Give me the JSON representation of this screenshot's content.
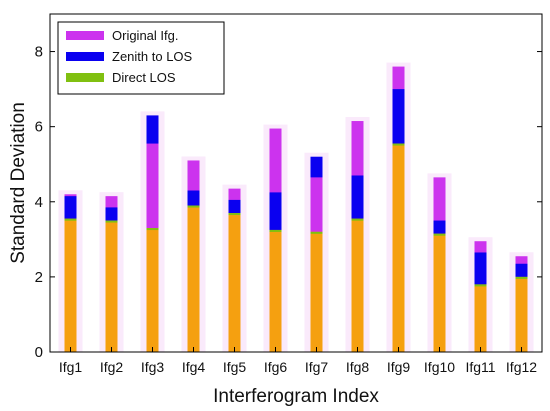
{
  "chart_data": {
    "type": "bar",
    "xlabel": "Interferogram Index",
    "ylabel": "Standard Deviation",
    "ylim": [
      0,
      9
    ],
    "yticks": [
      0,
      2,
      4,
      6,
      8
    ],
    "grid": false,
    "legend_position": "top-left",
    "categories": [
      "Ifg1",
      "Ifg2",
      "Ifg3",
      "Ifg4",
      "Ifg5",
      "Ifg6",
      "Ifg7",
      "Ifg8",
      "Ifg9",
      "Ifg10",
      "Ifg11",
      "Ifg12"
    ],
    "series": [
      {
        "name": "Original Ifg.",
        "color": "#cc33ee",
        "values": [
          4.2,
          4.15,
          5.55,
          5.1,
          4.35,
          5.95,
          4.65,
          6.15,
          7.6,
          4.65,
          2.95,
          2.55
        ]
      },
      {
        "name": "Zenith to LOS",
        "color": "#0a00f0",
        "values": [
          4.15,
          3.85,
          6.3,
          4.3,
          4.05,
          4.25,
          5.2,
          4.7,
          7.0,
          3.5,
          2.65,
          2.35
        ]
      },
      {
        "name": "Direct LOS",
        "color": "#80c010",
        "values": [
          3.55,
          3.5,
          3.3,
          3.9,
          3.7,
          3.25,
          3.2,
          3.55,
          5.55,
          3.15,
          1.8,
          2.0
        ]
      }
    ]
  }
}
